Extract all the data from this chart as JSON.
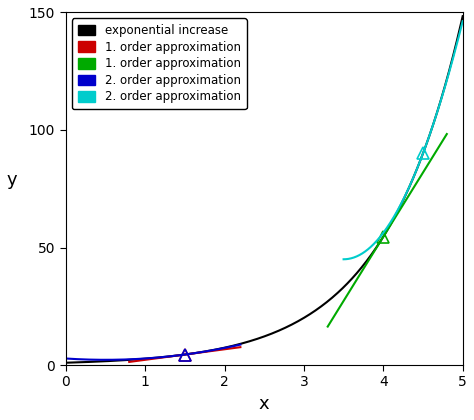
{
  "title": "",
  "xlabel": "x",
  "ylabel": "y",
  "xlim": [
    0,
    5
  ],
  "ylim": [
    0,
    150
  ],
  "xticks": [
    0,
    1,
    2,
    3,
    4,
    5
  ],
  "yticks": [
    0,
    50,
    100,
    150
  ],
  "exp_color": "#000000",
  "red_color": "#cc0000",
  "green_color": "#00aa00",
  "blue_color": "#0000cc",
  "cyan_color": "#00cccc",
  "x0_red": 1.5,
  "x0_green": 4.0,
  "x0_blue": 1.5,
  "x0_cyan": 4.5,
  "red_range": [
    0.8,
    2.2
  ],
  "green_range": [
    3.3,
    4.8
  ],
  "blue_range": [
    0.0,
    2.2
  ],
  "cyan_range": [
    3.5,
    5.0
  ],
  "background_color": "#ffffff",
  "legend_entries": [
    "exponential increase",
    "1. order approximation",
    "1. order approximation",
    "2. order approximation",
    "2. order approximation"
  ],
  "legend_colors": [
    "#000000",
    "#cc0000",
    "#00aa00",
    "#0000cc",
    "#00cccc"
  ]
}
